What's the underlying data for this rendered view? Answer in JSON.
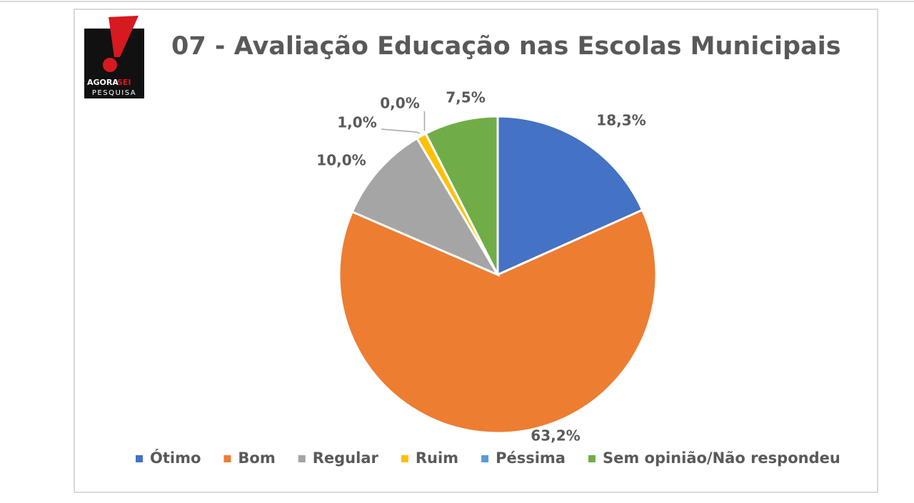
{
  "logo": {
    "words": [
      "AGORA",
      "SEI"
    ],
    "subtitle": "PESQUISA"
  },
  "chart_data": {
    "type": "pie",
    "title": "07 - Avaliação Educação nas Escolas Municipais",
    "categories": [
      "Ótimo",
      "Bom",
      "Regular",
      "Ruim",
      "Péssima",
      "Sem opinião/Não respondeu"
    ],
    "values": [
      18.3,
      63.2,
      10.0,
      1.0,
      0.0,
      7.5
    ],
    "value_labels": [
      "18,3%",
      "63,2%",
      "10,0%",
      "1,0%",
      "0,0%",
      "7,5%"
    ],
    "colors": [
      "#4472c4",
      "#ed7d31",
      "#a5a5a5",
      "#ffc000",
      "#5b9bd5",
      "#70ad47"
    ],
    "legend": "bottom"
  }
}
